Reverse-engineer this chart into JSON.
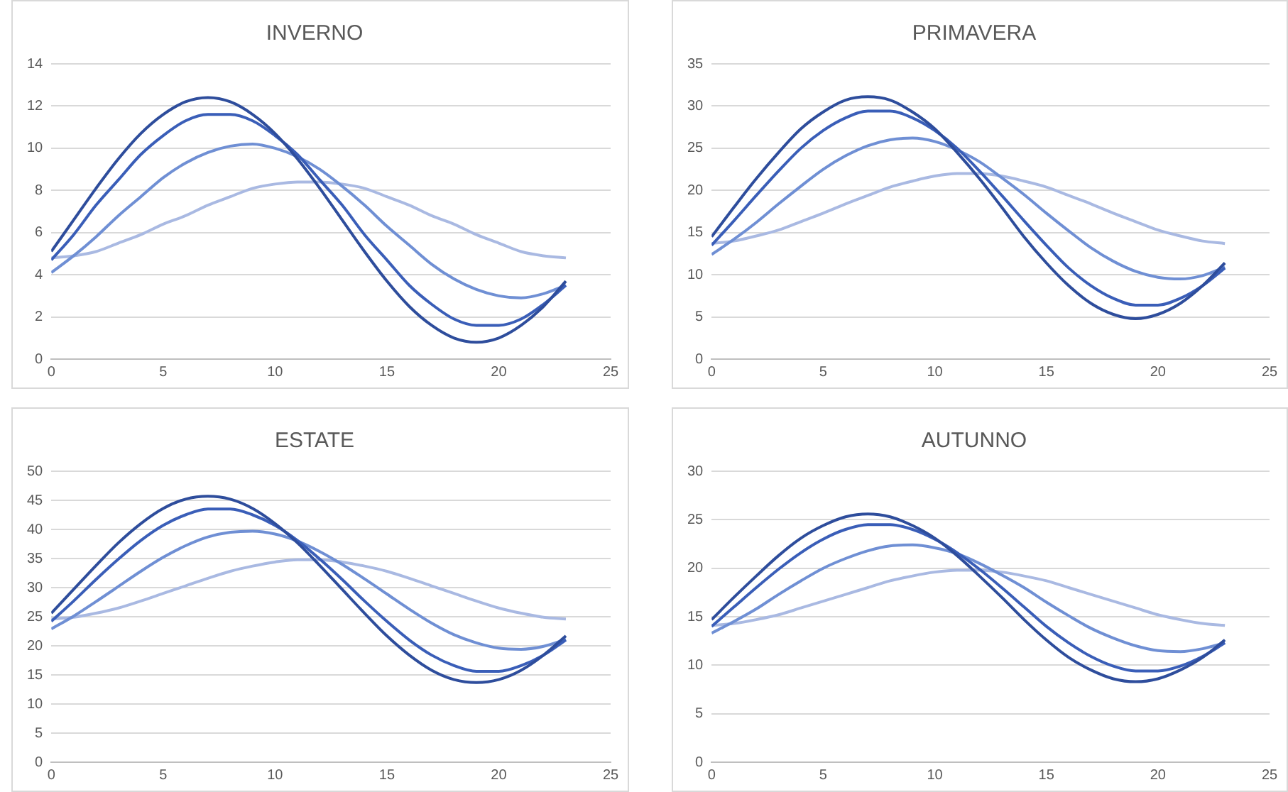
{
  "chart_data": [
    {
      "type": "line",
      "title": "INVERNO",
      "x": [
        0,
        1,
        2,
        3,
        4,
        5,
        6,
        7,
        8,
        9,
        10,
        11,
        12,
        13,
        14,
        15,
        16,
        17,
        18,
        19,
        20,
        21,
        22,
        23
      ],
      "xlim": [
        0,
        25
      ],
      "xticks": [
        0,
        5,
        10,
        15,
        20,
        25
      ],
      "ylim": [
        0,
        14
      ],
      "yticks": [
        0,
        2,
        4,
        6,
        8,
        10,
        12,
        14
      ],
      "grid": "y",
      "marker": "none",
      "series": [
        {
          "color": "#2e4d9c",
          "values": [
            5.1,
            6.6,
            8.1,
            9.5,
            10.7,
            11.6,
            12.2,
            12.4,
            12.2,
            11.6,
            10.7,
            9.5,
            8.1,
            6.6,
            5.1,
            3.7,
            2.5,
            1.6,
            1.0,
            0.8,
            1.0,
            1.6,
            2.5,
            3.7
          ]
        },
        {
          "color": "#3a5eb8",
          "values": [
            4.7,
            5.9,
            7.3,
            8.5,
            9.7,
            10.6,
            11.3,
            11.6,
            11.6,
            11.3,
            10.6,
            9.7,
            8.5,
            7.3,
            5.9,
            4.7,
            3.5,
            2.6,
            1.9,
            1.6,
            1.6,
            1.9,
            2.6,
            3.5
          ]
        },
        {
          "color": "#6f8fd4",
          "values": [
            4.1,
            4.9,
            5.8,
            6.8,
            7.7,
            8.6,
            9.3,
            9.8,
            10.1,
            10.2,
            10.0,
            9.6,
            9.0,
            8.2,
            7.3,
            6.3,
            5.4,
            4.5,
            3.8,
            3.3,
            3.0,
            2.9,
            3.1,
            3.5
          ]
        },
        {
          "color": "#a9b9e2",
          "values": [
            4.8,
            4.9,
            5.1,
            5.5,
            5.9,
            6.4,
            6.8,
            7.3,
            7.7,
            8.1,
            8.3,
            8.4,
            8.4,
            8.3,
            8.1,
            7.7,
            7.3,
            6.8,
            6.4,
            5.9,
            5.5,
            5.1,
            4.9,
            4.8
          ]
        }
      ]
    },
    {
      "type": "line",
      "title": "PRIMAVERA",
      "x": [
        0,
        1,
        2,
        3,
        4,
        5,
        6,
        7,
        8,
        9,
        10,
        11,
        12,
        13,
        14,
        15,
        16,
        17,
        18,
        19,
        20,
        21,
        22,
        23
      ],
      "xlim": [
        0,
        25
      ],
      "xticks": [
        0,
        5,
        10,
        15,
        20,
        25
      ],
      "ylim": [
        0,
        35
      ],
      "yticks": [
        0,
        5,
        10,
        15,
        20,
        25,
        30,
        35
      ],
      "grid": "y",
      "marker": "none",
      "series": [
        {
          "color": "#2e4d9c",
          "values": [
            14.5,
            18.0,
            21.4,
            24.5,
            27.3,
            29.3,
            30.7,
            31.1,
            30.7,
            29.3,
            27.3,
            24.5,
            21.4,
            18.0,
            14.5,
            11.4,
            8.7,
            6.6,
            5.3,
            4.8,
            5.3,
            6.6,
            8.7,
            11.4
          ]
        },
        {
          "color": "#3a5eb8",
          "values": [
            13.5,
            16.4,
            19.4,
            22.3,
            25.0,
            27.1,
            28.6,
            29.4,
            29.4,
            28.6,
            27.1,
            25.0,
            22.3,
            19.4,
            16.4,
            13.5,
            10.8,
            8.7,
            7.2,
            6.4,
            6.4,
            7.2,
            8.7,
            10.8
          ]
        },
        {
          "color": "#6f8fd4",
          "values": [
            12.4,
            14.2,
            16.2,
            18.4,
            20.5,
            22.5,
            24.1,
            25.3,
            26.0,
            26.2,
            25.8,
            24.8,
            23.4,
            21.5,
            19.5,
            17.3,
            15.2,
            13.2,
            11.6,
            10.4,
            9.7,
            9.5,
            9.9,
            10.9
          ]
        },
        {
          "color": "#a9b9e2",
          "values": [
            13.7,
            14.0,
            14.6,
            15.3,
            16.3,
            17.3,
            18.4,
            19.4,
            20.4,
            21.1,
            21.7,
            22.0,
            22.0,
            21.7,
            21.1,
            20.4,
            19.4,
            18.4,
            17.3,
            16.3,
            15.3,
            14.6,
            14.0,
            13.7
          ]
        }
      ]
    },
    {
      "type": "line",
      "title": "ESTATE",
      "x": [
        0,
        1,
        2,
        3,
        4,
        5,
        6,
        7,
        8,
        9,
        10,
        11,
        12,
        13,
        14,
        15,
        16,
        17,
        18,
        19,
        20,
        21,
        22,
        23
      ],
      "xlim": [
        0,
        25
      ],
      "xticks": [
        0,
        5,
        10,
        15,
        20,
        25
      ],
      "ylim": [
        0,
        50
      ],
      "yticks": [
        0,
        5,
        10,
        15,
        20,
        25,
        30,
        35,
        40,
        45,
        50
      ],
      "grid": "y",
      "marker": "none",
      "series": [
        {
          "color": "#2e4d9c",
          "values": [
            25.6,
            29.7,
            33.8,
            37.7,
            41.0,
            43.6,
            45.2,
            45.7,
            45.2,
            43.6,
            41.0,
            37.7,
            33.8,
            29.7,
            25.6,
            21.7,
            18.4,
            15.8,
            14.2,
            13.7,
            14.2,
            15.8,
            18.4,
            21.7
          ]
        },
        {
          "color": "#3a5eb8",
          "values": [
            24.2,
            27.7,
            31.4,
            34.9,
            38.1,
            40.7,
            42.5,
            43.5,
            43.5,
            42.5,
            40.7,
            38.1,
            34.9,
            31.4,
            27.7,
            24.2,
            21.0,
            18.4,
            16.6,
            15.6,
            15.6,
            16.6,
            18.4,
            21.0
          ]
        },
        {
          "color": "#6f8fd4",
          "values": [
            22.9,
            25.1,
            27.6,
            30.2,
            32.8,
            35.2,
            37.2,
            38.7,
            39.5,
            39.7,
            39.2,
            38.0,
            36.2,
            34.0,
            31.5,
            28.9,
            26.3,
            23.9,
            21.9,
            20.5,
            19.6,
            19.4,
            19.9,
            21.1
          ]
        },
        {
          "color": "#a9b9e2",
          "values": [
            24.6,
            24.9,
            25.6,
            26.5,
            27.7,
            29.0,
            30.3,
            31.6,
            32.8,
            33.7,
            34.4,
            34.8,
            34.8,
            34.4,
            33.7,
            32.8,
            31.6,
            30.3,
            29.0,
            27.7,
            26.5,
            25.6,
            24.9,
            24.6
          ]
        }
      ]
    },
    {
      "type": "line",
      "title": "AUTUNNO",
      "x": [
        0,
        1,
        2,
        3,
        4,
        5,
        6,
        7,
        8,
        9,
        10,
        11,
        12,
        13,
        14,
        15,
        16,
        17,
        18,
        19,
        20,
        21,
        22,
        23
      ],
      "xlim": [
        0,
        25
      ],
      "xticks": [
        0,
        5,
        10,
        15,
        20,
        25
      ],
      "ylim": [
        0,
        30
      ],
      "yticks": [
        0,
        5,
        10,
        15,
        20,
        25,
        30
      ],
      "grid": "y",
      "marker": "none",
      "series": [
        {
          "color": "#2e4d9c",
          "values": [
            14.7,
            17.0,
            19.2,
            21.3,
            23.1,
            24.4,
            25.3,
            25.6,
            25.3,
            24.4,
            23.1,
            21.3,
            19.2,
            17.0,
            14.7,
            12.6,
            10.8,
            9.5,
            8.6,
            8.3,
            8.6,
            9.5,
            10.8,
            12.6
          ]
        },
        {
          "color": "#3a5eb8",
          "values": [
            14.0,
            16.0,
            18.0,
            19.9,
            21.6,
            23.0,
            24.0,
            24.5,
            24.5,
            24.0,
            23.0,
            21.6,
            19.9,
            18.0,
            16.0,
            14.0,
            12.3,
            10.9,
            9.9,
            9.4,
            9.4,
            9.9,
            10.9,
            12.3
          ]
        },
        {
          "color": "#6f8fd4",
          "values": [
            13.3,
            14.5,
            15.8,
            17.3,
            18.7,
            20.0,
            21.0,
            21.8,
            22.3,
            22.4,
            22.1,
            21.5,
            20.5,
            19.3,
            18.0,
            16.5,
            15.1,
            13.8,
            12.8,
            12.0,
            11.5,
            11.4,
            11.7,
            12.3
          ]
        },
        {
          "color": "#a9b9e2",
          "values": [
            14.1,
            14.3,
            14.7,
            15.2,
            15.9,
            16.6,
            17.3,
            18.0,
            18.7,
            19.2,
            19.6,
            19.8,
            19.8,
            19.6,
            19.2,
            18.7,
            18.0,
            17.3,
            16.6,
            15.9,
            15.2,
            14.7,
            14.3,
            14.1
          ]
        }
      ]
    }
  ]
}
